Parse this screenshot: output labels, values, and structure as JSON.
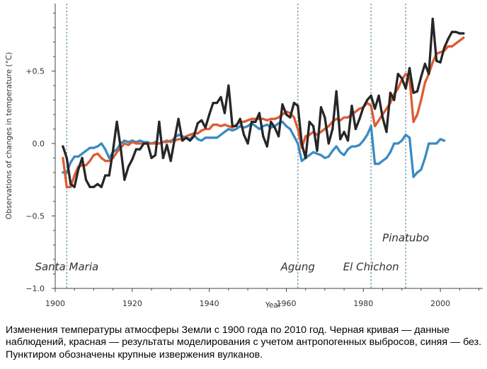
{
  "chart_data": {
    "type": "line",
    "title": "",
    "xlabel": "Year",
    "ylabel": "Observations of changes in temperature (°C)",
    "xlim": [
      1900,
      2011
    ],
    "ylim": [
      -1.0,
      0.95
    ],
    "x_ticks": [
      1900,
      1920,
      1940,
      1960,
      1980,
      2000
    ],
    "y_ticks": [
      {
        "value": 0.5,
        "label": "+0.5"
      },
      {
        "value": 0.0,
        "label": "0.0"
      },
      {
        "value": -0.5,
        "label": "−0.5"
      },
      {
        "value": -1.0,
        "label": "−1.0"
      }
    ],
    "grid": false,
    "series": [
      {
        "key": "natural",
        "color": "#3a8bc2",
        "x": [
          1902,
          1903,
          1904,
          1905,
          1906,
          1907,
          1908,
          1909,
          1910,
          1911,
          1912,
          1913,
          1914,
          1915,
          1916,
          1917,
          1918,
          1919,
          1920,
          1921,
          1922,
          1923,
          1924,
          1925,
          1926,
          1927,
          1928,
          1929,
          1930,
          1931,
          1932,
          1933,
          1934,
          1935,
          1936,
          1937,
          1938,
          1939,
          1940,
          1941,
          1942,
          1943,
          1944,
          1945,
          1946,
          1947,
          1948,
          1949,
          1950,
          1951,
          1952,
          1953,
          1954,
          1955,
          1956,
          1957,
          1958,
          1959,
          1960,
          1961,
          1962,
          1963,
          1964,
          1965,
          1966,
          1967,
          1968,
          1969,
          1970,
          1971,
          1972,
          1973,
          1974,
          1975,
          1976,
          1977,
          1978,
          1979,
          1980,
          1981,
          1982,
          1983,
          1984,
          1985,
          1986,
          1987,
          1988,
          1989,
          1990,
          1991,
          1992,
          1993,
          1994,
          1995,
          1996,
          1997,
          1998,
          1999,
          2000,
          2001
        ],
        "values": [
          -0.2,
          -0.2,
          -0.13,
          -0.09,
          -0.09,
          -0.07,
          -0.05,
          -0.03,
          -0.03,
          -0.02,
          0.0,
          -0.04,
          -0.1,
          -0.06,
          -0.04,
          0.0,
          0.02,
          0.01,
          0.02,
          0.01,
          0.02,
          0.01,
          0.01,
          0.0,
          0.01,
          0.0,
          0.01,
          0.02,
          0.01,
          0.04,
          0.06,
          0.05,
          0.04,
          0.03,
          0.06,
          0.03,
          0.02,
          0.04,
          0.04,
          0.04,
          0.04,
          0.06,
          0.08,
          0.1,
          0.09,
          0.1,
          0.12,
          0.11,
          0.12,
          0.14,
          0.12,
          0.1,
          0.12,
          0.13,
          0.11,
          0.12,
          0.14,
          0.15,
          0.12,
          0.1,
          0.05,
          0.0,
          -0.12,
          -0.1,
          -0.08,
          -0.06,
          -0.07,
          -0.08,
          -0.1,
          -0.09,
          -0.05,
          -0.02,
          -0.06,
          -0.08,
          -0.04,
          -0.02,
          -0.02,
          -0.01,
          0.02,
          0.06,
          0.12,
          -0.14,
          -0.14,
          -0.12,
          -0.1,
          -0.06,
          0.0,
          0.0,
          0.02,
          0.06,
          0.04,
          -0.23,
          -0.2,
          -0.18,
          -0.1,
          0.0,
          0.0,
          0.0,
          0.03,
          0.02
        ]
      },
      {
        "key": "modeled",
        "color": "#e05a33",
        "x": [
          1902,
          1903,
          1904,
          1905,
          1906,
          1907,
          1908,
          1909,
          1910,
          1911,
          1912,
          1913,
          1914,
          1915,
          1916,
          1917,
          1918,
          1919,
          1920,
          1921,
          1922,
          1923,
          1924,
          1925,
          1926,
          1927,
          1928,
          1929,
          1930,
          1931,
          1932,
          1933,
          1934,
          1935,
          1936,
          1937,
          1938,
          1939,
          1940,
          1941,
          1942,
          1943,
          1944,
          1945,
          1946,
          1947,
          1948,
          1949,
          1950,
          1951,
          1952,
          1953,
          1954,
          1955,
          1956,
          1957,
          1958,
          1959,
          1960,
          1961,
          1962,
          1963,
          1964,
          1965,
          1966,
          1967,
          1968,
          1969,
          1970,
          1971,
          1972,
          1973,
          1974,
          1975,
          1976,
          1977,
          1978,
          1979,
          1980,
          1981,
          1982,
          1983,
          1984,
          1985,
          1986,
          1987,
          1988,
          1989,
          1990,
          1991,
          1992,
          1993,
          1994,
          1995,
          1996,
          1997,
          1998,
          1999,
          2000,
          2001,
          2002,
          2003,
          2004,
          2005,
          2006
        ],
        "values": [
          -0.1,
          -0.3,
          -0.3,
          -0.22,
          -0.16,
          -0.15,
          -0.15,
          -0.12,
          -0.08,
          -0.07,
          -0.1,
          -0.12,
          -0.12,
          -0.1,
          -0.06,
          -0.03,
          0.0,
          -0.01,
          0.01,
          0.0,
          0.0,
          0.0,
          0.0,
          0.0,
          0.0,
          0.0,
          0.01,
          0.01,
          0.02,
          0.02,
          0.03,
          0.03,
          0.05,
          0.06,
          0.07,
          0.07,
          0.09,
          0.1,
          0.1,
          0.13,
          0.13,
          0.12,
          0.13,
          0.12,
          0.11,
          0.13,
          0.15,
          0.15,
          0.16,
          0.17,
          0.17,
          0.17,
          0.17,
          0.16,
          0.17,
          0.17,
          0.18,
          0.2,
          0.22,
          0.21,
          0.18,
          0.1,
          -0.03,
          0.05,
          0.06,
          0.08,
          0.06,
          0.08,
          0.1,
          0.12,
          0.15,
          0.17,
          0.16,
          0.18,
          0.18,
          0.2,
          0.22,
          0.24,
          0.25,
          0.28,
          0.26,
          0.12,
          0.16,
          0.2,
          0.24,
          0.28,
          0.34,
          0.38,
          0.44,
          0.48,
          0.45,
          0.15,
          0.2,
          0.3,
          0.42,
          0.48,
          0.56,
          0.62,
          0.63,
          0.64,
          0.67,
          0.67,
          0.69,
          0.71,
          0.73
        ]
      },
      {
        "key": "observed",
        "color": "#262626",
        "x": [
          1902,
          1903,
          1904,
          1905,
          1906,
          1907,
          1908,
          1909,
          1910,
          1911,
          1912,
          1913,
          1914,
          1915,
          1916,
          1917,
          1918,
          1919,
          1920,
          1921,
          1922,
          1923,
          1924,
          1925,
          1926,
          1927,
          1928,
          1929,
          1930,
          1931,
          1932,
          1933,
          1934,
          1935,
          1936,
          1937,
          1938,
          1939,
          1940,
          1941,
          1942,
          1943,
          1944,
          1945,
          1946,
          1947,
          1948,
          1949,
          1950,
          1951,
          1952,
          1953,
          1954,
          1955,
          1956,
          1957,
          1958,
          1959,
          1960,
          1961,
          1962,
          1963,
          1964,
          1965,
          1966,
          1967,
          1968,
          1969,
          1970,
          1971,
          1972,
          1973,
          1974,
          1975,
          1976,
          1977,
          1978,
          1979,
          1980,
          1981,
          1982,
          1983,
          1984,
          1985,
          1986,
          1987,
          1988,
          1989,
          1990,
          1991,
          1992,
          1993,
          1994,
          1995,
          1996,
          1997,
          1998,
          1999,
          2000,
          2001,
          2002,
          2003,
          2004,
          2005,
          2006
        ],
        "values": [
          -0.02,
          -0.1,
          -0.28,
          -0.3,
          -0.18,
          -0.1,
          -0.25,
          -0.3,
          -0.3,
          -0.28,
          -0.3,
          -0.22,
          -0.22,
          -0.05,
          0.15,
          -0.03,
          -0.25,
          -0.16,
          -0.11,
          -0.04,
          -0.04,
          0.0,
          0.0,
          -0.1,
          -0.08,
          0.15,
          -0.1,
          -0.01,
          -0.12,
          0.03,
          0.17,
          0.02,
          0.04,
          0.02,
          0.05,
          0.14,
          0.16,
          0.11,
          0.2,
          0.28,
          0.28,
          0.32,
          0.21,
          0.4,
          0.12,
          0.12,
          0.17,
          0.06,
          0.0,
          0.15,
          0.15,
          0.21,
          0.05,
          -0.02,
          0.15,
          0.11,
          0.05,
          0.27,
          0.2,
          0.18,
          0.28,
          0.26,
          0.0,
          -0.1,
          0.15,
          0.12,
          -0.05,
          0.25,
          0.18,
          0.0,
          0.1,
          0.36,
          0.03,
          0.08,
          0.02,
          0.26,
          0.1,
          0.17,
          0.25,
          0.3,
          0.33,
          0.24,
          0.33,
          0.18,
          0.08,
          0.35,
          0.3,
          0.48,
          0.45,
          0.38,
          0.52,
          0.35,
          0.36,
          0.46,
          0.55,
          0.48,
          0.86,
          0.57,
          0.56,
          0.66,
          0.72,
          0.77,
          0.77,
          0.76,
          0.76
        ]
      }
    ],
    "volcanoes": [
      {
        "name": "Santa Maria",
        "year": 1903,
        "label_y": -0.85
      },
      {
        "name": "Agung",
        "year": 1963,
        "label_y": -0.85
      },
      {
        "name": "El Chichon",
        "year": 1982,
        "label_y": -0.85
      },
      {
        "name": "Pinatubo",
        "year": 1991,
        "label_y": -0.65
      }
    ]
  },
  "caption": "Изменения температуры атмосферы Земли с 1900 года по 2010 год. Черная кривая — данные наблюдений, красная — результаты моделирования с учетом антропогенных выбросов, синяя — без. Пунктиром обозначены крупные извержения вулканов.",
  "colors": {
    "axis": "#444444",
    "volcano_line": "#5e8f94"
  }
}
